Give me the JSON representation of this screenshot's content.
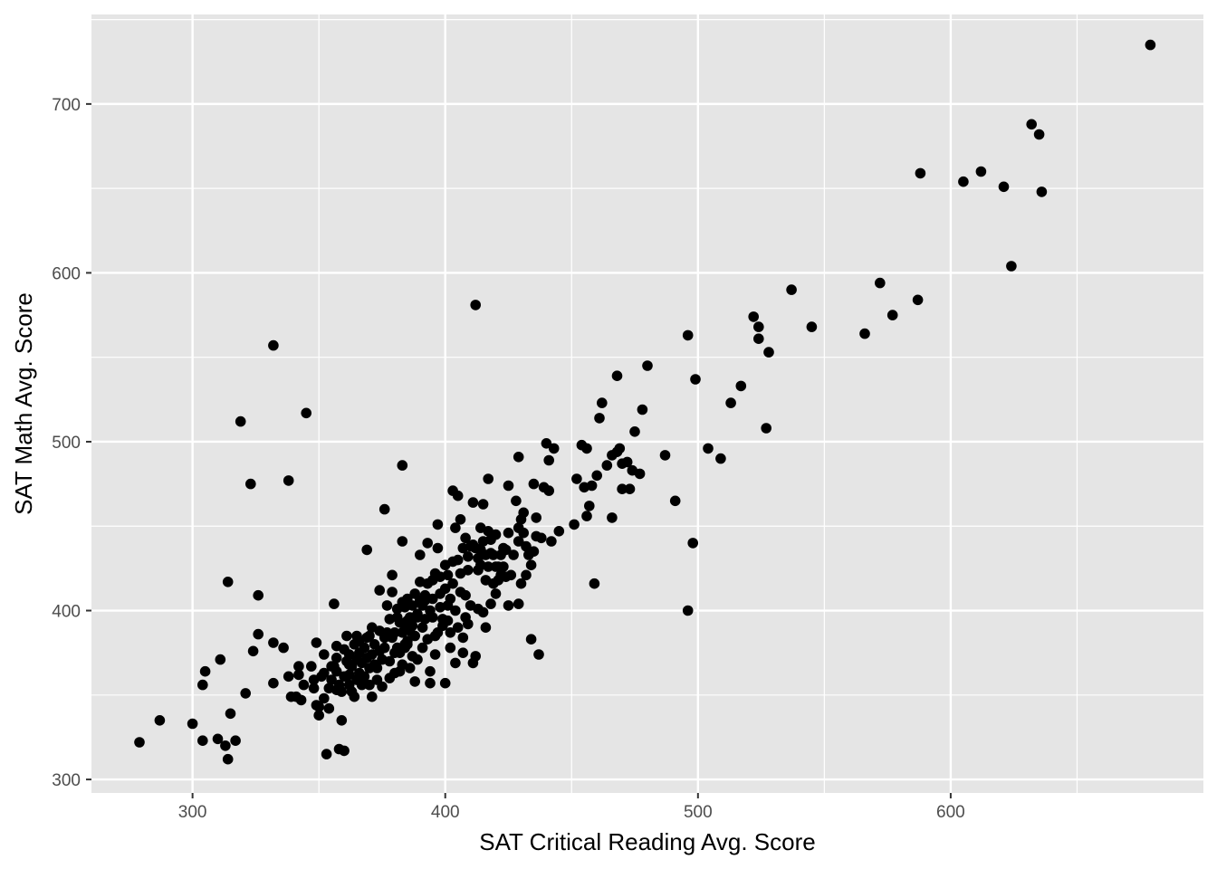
{
  "chart_data": {
    "type": "scatter",
    "title": "",
    "xlabel": "SAT Critical Reading Avg. Score",
    "ylabel": "SAT Math Avg. Score",
    "xlim": [
      260,
      700
    ],
    "ylim": [
      292,
      753
    ],
    "x_ticks": [
      300,
      400,
      500,
      600
    ],
    "y_ticks": [
      300,
      400,
      500,
      600,
      700
    ],
    "x_tick_labels": [
      "300",
      "400",
      "500",
      "600"
    ],
    "y_tick_labels": [
      "300",
      "400",
      "500",
      "600",
      "700"
    ],
    "grid": true,
    "panel_background": "#e5e5e5",
    "gridline_color": "#ffffff",
    "point_color": "#000000",
    "points": [
      [
        279,
        322
      ],
      [
        287,
        335
      ],
      [
        300,
        333
      ],
      [
        304,
        323
      ],
      [
        304,
        356
      ],
      [
        305,
        364
      ],
      [
        310,
        324
      ],
      [
        311,
        371
      ],
      [
        313,
        320
      ],
      [
        314,
        312
      ],
      [
        314,
        417
      ],
      [
        315,
        339
      ],
      [
        317,
        323
      ],
      [
        319,
        512
      ],
      [
        321,
        351
      ],
      [
        323,
        475
      ],
      [
        324,
        376
      ],
      [
        326,
        409
      ],
      [
        326,
        386
      ],
      [
        332,
        557
      ],
      [
        332,
        381
      ],
      [
        332,
        357
      ],
      [
        336,
        378
      ],
      [
        338,
        361
      ],
      [
        338,
        477
      ],
      [
        339,
        349
      ],
      [
        341,
        349
      ],
      [
        342,
        362
      ],
      [
        342,
        367
      ],
      [
        343,
        347
      ],
      [
        344,
        356
      ],
      [
        345,
        517
      ],
      [
        347,
        367
      ],
      [
        348,
        359
      ],
      [
        348,
        354
      ],
      [
        349,
        381
      ],
      [
        349,
        344
      ],
      [
        350,
        343
      ],
      [
        350,
        338
      ],
      [
        351,
        361
      ],
      [
        352,
        348
      ],
      [
        352,
        363
      ],
      [
        352,
        374
      ],
      [
        353,
        315
      ],
      [
        354,
        354
      ],
      [
        354,
        342
      ],
      [
        355,
        367
      ],
      [
        355,
        359
      ],
      [
        356,
        404
      ],
      [
        356,
        367
      ],
      [
        357,
        372
      ],
      [
        357,
        379
      ],
      [
        357,
        353
      ],
      [
        357,
        364
      ],
      [
        358,
        318
      ],
      [
        358,
        356
      ],
      [
        359,
        335
      ],
      [
        359,
        352
      ],
      [
        360,
        317
      ],
      [
        360,
        361
      ],
      [
        360,
        377
      ],
      [
        361,
        385
      ],
      [
        361,
        370
      ],
      [
        362,
        368
      ],
      [
        362,
        356
      ],
      [
        362,
        374
      ],
      [
        362,
        362
      ],
      [
        363,
        352
      ],
      [
        363,
        367
      ],
      [
        364,
        380
      ],
      [
        364,
        349
      ],
      [
        365,
        371
      ],
      [
        365,
        385
      ],
      [
        365,
        359
      ],
      [
        366,
        363
      ],
      [
        366,
        375
      ],
      [
        366,
        382
      ],
      [
        367,
        356
      ],
      [
        367,
        369
      ],
      [
        368,
        378
      ],
      [
        368,
        361
      ],
      [
        369,
        384
      ],
      [
        369,
        436
      ],
      [
        369,
        372
      ],
      [
        370,
        366
      ],
      [
        370,
        385
      ],
      [
        370,
        356
      ],
      [
        371,
        349
      ],
      [
        371,
        374
      ],
      [
        371,
        390
      ],
      [
        372,
        380
      ],
      [
        372,
        368
      ],
      [
        373,
        366
      ],
      [
        373,
        359
      ],
      [
        374,
        412
      ],
      [
        374,
        376
      ],
      [
        374,
        388
      ],
      [
        375,
        371
      ],
      [
        375,
        355
      ],
      [
        376,
        384
      ],
      [
        376,
        460
      ],
      [
        376,
        378
      ],
      [
        377,
        403
      ],
      [
        377,
        387
      ],
      [
        378,
        360
      ],
      [
        378,
        395
      ],
      [
        378,
        370
      ],
      [
        379,
        421
      ],
      [
        379,
        384
      ],
      [
        379,
        411
      ],
      [
        380,
        375
      ],
      [
        380,
        387
      ],
      [
        380,
        363
      ],
      [
        381,
        396
      ],
      [
        381,
        378
      ],
      [
        381,
        401
      ],
      [
        382,
        375
      ],
      [
        382,
        393
      ],
      [
        382,
        364
      ],
      [
        383,
        486
      ],
      [
        383,
        387
      ],
      [
        383,
        368
      ],
      [
        383,
        441
      ],
      [
        383,
        405
      ],
      [
        384,
        402
      ],
      [
        384,
        378
      ],
      [
        384,
        389
      ],
      [
        384,
        380
      ],
      [
        385,
        382
      ],
      [
        385,
        407
      ],
      [
        385,
        394
      ],
      [
        385,
        380
      ],
      [
        386,
        366
      ],
      [
        386,
        396
      ],
      [
        386,
        388
      ],
      [
        387,
        373
      ],
      [
        387,
        403
      ],
      [
        387,
        391
      ],
      [
        388,
        358
      ],
      [
        388,
        385
      ],
      [
        388,
        410
      ],
      [
        389,
        396
      ],
      [
        389,
        371
      ],
      [
        389,
        398
      ],
      [
        390,
        406
      ],
      [
        390,
        433
      ],
      [
        390,
        417
      ],
      [
        391,
        390
      ],
      [
        391,
        403
      ],
      [
        391,
        378
      ],
      [
        392,
        395
      ],
      [
        392,
        409
      ],
      [
        392,
        406
      ],
      [
        393,
        416
      ],
      [
        393,
        440
      ],
      [
        393,
        383
      ],
      [
        394,
        364
      ],
      [
        394,
        357
      ],
      [
        394,
        400
      ],
      [
        395,
        418
      ],
      [
        395,
        396
      ],
      [
        395,
        407
      ],
      [
        396,
        422
      ],
      [
        396,
        385
      ],
      [
        396,
        374
      ],
      [
        397,
        387
      ],
      [
        397,
        437
      ],
      [
        397,
        451
      ],
      [
        398,
        402
      ],
      [
        398,
        410
      ],
      [
        398,
        420
      ],
      [
        399,
        391
      ],
      [
        399,
        395
      ],
      [
        400,
        413
      ],
      [
        400,
        357
      ],
      [
        400,
        427
      ],
      [
        401,
        394
      ],
      [
        401,
        403
      ],
      [
        401,
        421
      ],
      [
        402,
        387
      ],
      [
        402,
        378
      ],
      [
        402,
        407
      ],
      [
        403,
        471
      ],
      [
        403,
        429
      ],
      [
        403,
        416
      ],
      [
        404,
        400
      ],
      [
        404,
        369
      ],
      [
        404,
        449
      ],
      [
        405,
        468
      ],
      [
        405,
        390
      ],
      [
        405,
        430
      ],
      [
        406,
        454
      ],
      [
        406,
        411
      ],
      [
        406,
        422
      ],
      [
        407,
        437
      ],
      [
        407,
        384
      ],
      [
        407,
        375
      ],
      [
        408,
        443
      ],
      [
        408,
        409
      ],
      [
        408,
        396
      ],
      [
        409,
        424
      ],
      [
        409,
        392
      ],
      [
        409,
        432
      ],
      [
        410,
        438
      ],
      [
        410,
        403
      ],
      [
        411,
        439
      ],
      [
        411,
        369
      ],
      [
        411,
        464
      ],
      [
        412,
        437
      ],
      [
        412,
        581
      ],
      [
        412,
        373
      ],
      [
        413,
        431
      ],
      [
        413,
        424
      ],
      [
        413,
        401
      ],
      [
        414,
        449
      ],
      [
        414,
        436
      ],
      [
        414,
        427
      ],
      [
        415,
        399
      ],
      [
        415,
        463
      ],
      [
        415,
        441
      ],
      [
        416,
        390
      ],
      [
        416,
        433
      ],
      [
        416,
        418
      ],
      [
        417,
        478
      ],
      [
        417,
        447
      ],
      [
        417,
        426
      ],
      [
        418,
        434
      ],
      [
        418,
        442
      ],
      [
        418,
        404
      ],
      [
        419,
        433
      ],
      [
        419,
        416
      ],
      [
        420,
        426
      ],
      [
        420,
        445
      ],
      [
        420,
        410
      ],
      [
        421,
        426
      ],
      [
        421,
        418
      ],
      [
        422,
        433
      ],
      [
        422,
        421
      ],
      [
        423,
        437
      ],
      [
        423,
        426
      ],
      [
        424,
        420
      ],
      [
        424,
        436
      ],
      [
        425,
        446
      ],
      [
        425,
        474
      ],
      [
        425,
        403
      ],
      [
        426,
        421
      ],
      [
        427,
        433
      ],
      [
        428,
        465
      ],
      [
        429,
        404
      ],
      [
        429,
        441
      ],
      [
        429,
        449
      ],
      [
        429,
        491
      ],
      [
        430,
        454
      ],
      [
        430,
        416
      ],
      [
        431,
        458
      ],
      [
        431,
        446
      ],
      [
        432,
        438
      ],
      [
        432,
        421
      ],
      [
        433,
        433
      ],
      [
        434,
        383
      ],
      [
        434,
        427
      ],
      [
        435,
        435
      ],
      [
        435,
        475
      ],
      [
        436,
        455
      ],
      [
        436,
        444
      ],
      [
        437,
        374
      ],
      [
        438,
        443
      ],
      [
        439,
        473
      ],
      [
        440,
        499
      ],
      [
        441,
        489
      ],
      [
        441,
        471
      ],
      [
        442,
        441
      ],
      [
        443,
        496
      ],
      [
        445,
        447
      ],
      [
        451,
        451
      ],
      [
        452,
        478
      ],
      [
        454,
        498
      ],
      [
        455,
        473
      ],
      [
        456,
        456
      ],
      [
        456,
        496
      ],
      [
        457,
        462
      ],
      [
        458,
        474
      ],
      [
        459,
        416
      ],
      [
        460,
        480
      ],
      [
        461,
        514
      ],
      [
        462,
        523
      ],
      [
        464,
        486
      ],
      [
        466,
        492
      ],
      [
        466,
        455
      ],
      [
        468,
        494
      ],
      [
        468,
        539
      ],
      [
        469,
        496
      ],
      [
        470,
        472
      ],
      [
        470,
        487
      ],
      [
        472,
        488
      ],
      [
        473,
        472
      ],
      [
        474,
        483
      ],
      [
        475,
        506
      ],
      [
        477,
        481
      ],
      [
        478,
        519
      ],
      [
        480,
        545
      ],
      [
        487,
        492
      ],
      [
        491,
        465
      ],
      [
        496,
        563
      ],
      [
        496,
        400
      ],
      [
        498,
        440
      ],
      [
        499,
        537
      ],
      [
        504,
        496
      ],
      [
        509,
        490
      ],
      [
        513,
        523
      ],
      [
        517,
        533
      ],
      [
        522,
        574
      ],
      [
        524,
        568
      ],
      [
        524,
        561
      ],
      [
        527,
        508
      ],
      [
        528,
        553
      ],
      [
        537,
        590
      ],
      [
        545,
        568
      ],
      [
        566,
        564
      ],
      [
        572,
        594
      ],
      [
        577,
        575
      ],
      [
        587,
        584
      ],
      [
        588,
        659
      ],
      [
        605,
        654
      ],
      [
        612,
        660
      ],
      [
        621,
        651
      ],
      [
        624,
        604
      ],
      [
        632,
        688
      ],
      [
        635,
        682
      ],
      [
        636,
        648
      ],
      [
        679,
        735
      ]
    ]
  }
}
